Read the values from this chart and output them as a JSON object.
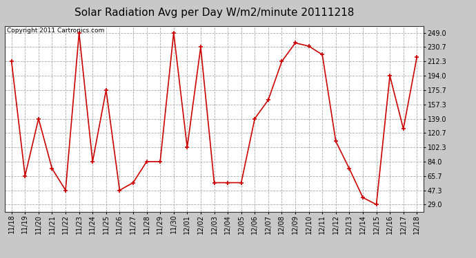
{
  "title": "Solar Radiation Avg per Day W/m2/minute 20111218",
  "copyright": "Copyright 2011 Cartronics.com",
  "dates": [
    "11/18",
    "11/19",
    "11/20",
    "11/21",
    "11/22",
    "11/23",
    "11/24",
    "11/25",
    "11/26",
    "11/27",
    "11/28",
    "11/29",
    "11/30",
    "12/01",
    "12/02",
    "12/03",
    "12/04",
    "12/05",
    "12/06",
    "12/07",
    "12/08",
    "12/09",
    "12/10",
    "12/11",
    "12/12",
    "12/13",
    "12/14",
    "12/15",
    "12/16",
    "12/17",
    "12/18"
  ],
  "values": [
    212.3,
    65.7,
    139.0,
    75.0,
    47.3,
    249.0,
    84.0,
    175.7,
    47.3,
    57.0,
    84.0,
    84.0,
    249.0,
    102.3,
    230.7,
    57.0,
    57.0,
    57.0,
    139.0,
    163.0,
    212.3,
    236.0,
    232.0,
    221.0,
    110.0,
    75.0,
    38.0,
    29.0,
    194.0,
    126.0,
    218.0
  ],
  "line_color": "#cc0000",
  "marker_color": "#cc0000",
  "fig_bg_color": "#c8c8c8",
  "plot_bg_color": "#ffffff",
  "grid_color": "#aaaaaa",
  "yticks": [
    29.0,
    47.3,
    65.7,
    84.0,
    102.3,
    120.7,
    139.0,
    157.3,
    175.7,
    194.0,
    212.3,
    230.7,
    249.0
  ],
  "ymin": 20.0,
  "ymax": 258.0,
  "title_fontsize": 11,
  "copyright_fontsize": 6.5,
  "tick_fontsize": 7.0
}
